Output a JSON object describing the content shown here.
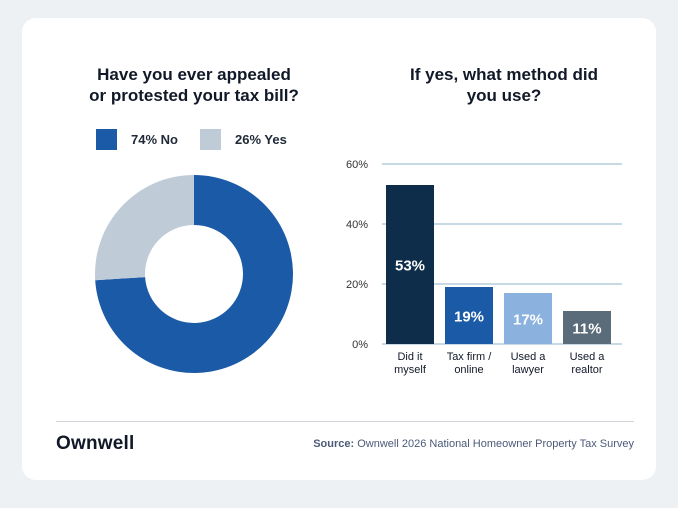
{
  "left_title": "Have you ever appealed\nor protested your tax bill?",
  "right_title": "If yes, what method did\nyou use?",
  "logo": "Ownwell",
  "source_label": "Source:",
  "source_text": "Ownwell 2026 National Homeowner Property Tax Survey",
  "colors": {
    "no": "#1b5aa7",
    "yes": "#bfcbd6",
    "bars": [
      "#0d2d4a",
      "#1b5aa7",
      "#8bb1de",
      "#5a6b7a"
    ],
    "grid": "#8fb3c8"
  },
  "chart_data": [
    {
      "type": "pie",
      "title": "Have you ever appealed\nor protested your tax bill?",
      "donut": true,
      "slices": [
        {
          "label": "74% No",
          "value": 74
        },
        {
          "label": "26% Yes",
          "value": 26
        }
      ],
      "legend": "top"
    },
    {
      "type": "bar",
      "title": "If yes, what method did\nyou use?",
      "categories": [
        "Did it myself",
        "Tax firm / online",
        "Used a lawyer",
        "Used a realtor"
      ],
      "category_lines": [
        [
          "Did it",
          "myself"
        ],
        [
          "Tax firm /",
          "online"
        ],
        [
          "Used a",
          "lawyer"
        ],
        [
          "Used a",
          "realtor"
        ]
      ],
      "values": [
        53,
        19,
        17,
        11
      ],
      "value_labels": [
        "53%",
        "19%",
        "17%",
        "11%"
      ],
      "yticks": [
        "0%",
        "20%",
        "40%",
        "60%"
      ],
      "ylim": [
        0,
        60
      ],
      "grid": true
    }
  ]
}
